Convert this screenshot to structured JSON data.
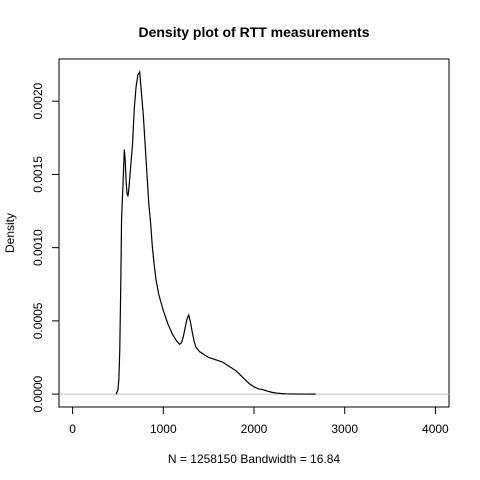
{
  "chart_data": {
    "type": "line",
    "title": "Density plot of RTT measurements",
    "xlabel": "N = 1258150   Bandwidth = 16.84",
    "ylabel": "Density",
    "xlim": [
      -150,
      4150
    ],
    "ylim": [
      -8.8e-05,
      0.002288
    ],
    "x_ticks": [
      0,
      1000,
      2000,
      3000,
      4000
    ],
    "x_tick_labels": [
      "0",
      "1000",
      "2000",
      "3000",
      "4000"
    ],
    "y_ticks": [
      0.0,
      0.0005,
      0.001,
      0.0015,
      0.002
    ],
    "y_tick_labels": [
      "0.0000",
      "0.0005",
      "0.0010",
      "0.0015",
      "0.0020"
    ],
    "baseline": 0,
    "baseline_color": "#bebebe",
    "line_color": "#000000",
    "grid": false,
    "legend": "none",
    "series": [
      {
        "x": [
          480,
          500,
          510,
          520,
          530,
          540,
          550,
          560,
          570,
          580,
          590,
          600,
          610,
          620,
          640,
          660,
          680,
          700,
          720,
          740,
          760,
          780,
          800,
          820,
          840,
          860,
          880,
          900,
          920,
          950,
          1000,
          1050,
          1100,
          1150,
          1180,
          1200,
          1220,
          1240,
          1260,
          1280,
          1300,
          1320,
          1340,
          1360,
          1400,
          1450,
          1500,
          1550,
          1600,
          1650,
          1700,
          1750,
          1800,
          1850,
          1900,
          1950,
          2000,
          2050,
          2100,
          2150,
          2200,
          2250,
          2300,
          2350,
          2400,
          2500,
          2600,
          2680
        ],
        "y": [
          0,
          3e-05,
          0.0001,
          0.0003,
          0.0007,
          0.0012,
          0.00135,
          0.0015,
          0.00167,
          0.0016,
          0.00145,
          0.00137,
          0.00135,
          0.0014,
          0.00155,
          0.0017,
          0.00195,
          0.0021,
          0.00218,
          0.0022,
          0.00205,
          0.0019,
          0.0017,
          0.0015,
          0.0013,
          0.00117,
          0.001,
          0.00088,
          0.00078,
          0.00068,
          0.00057,
          0.00048,
          0.00041,
          0.00036,
          0.00034,
          0.00035,
          0.00039,
          0.00045,
          0.00051,
          0.00054,
          0.00049,
          0.00042,
          0.00036,
          0.00032,
          0.00029,
          0.00027,
          0.00025,
          0.00024,
          0.00023,
          0.00022,
          0.0002,
          0.00018,
          0.00016,
          0.00013,
          0.0001,
          7e-05,
          5e-05,
          3.5e-05,
          3e-05,
          2e-05,
          1.2e-05,
          7e-06,
          4e-06,
          2e-06,
          1e-06,
          5e-07,
          2e-07,
          0
        ]
      }
    ]
  }
}
